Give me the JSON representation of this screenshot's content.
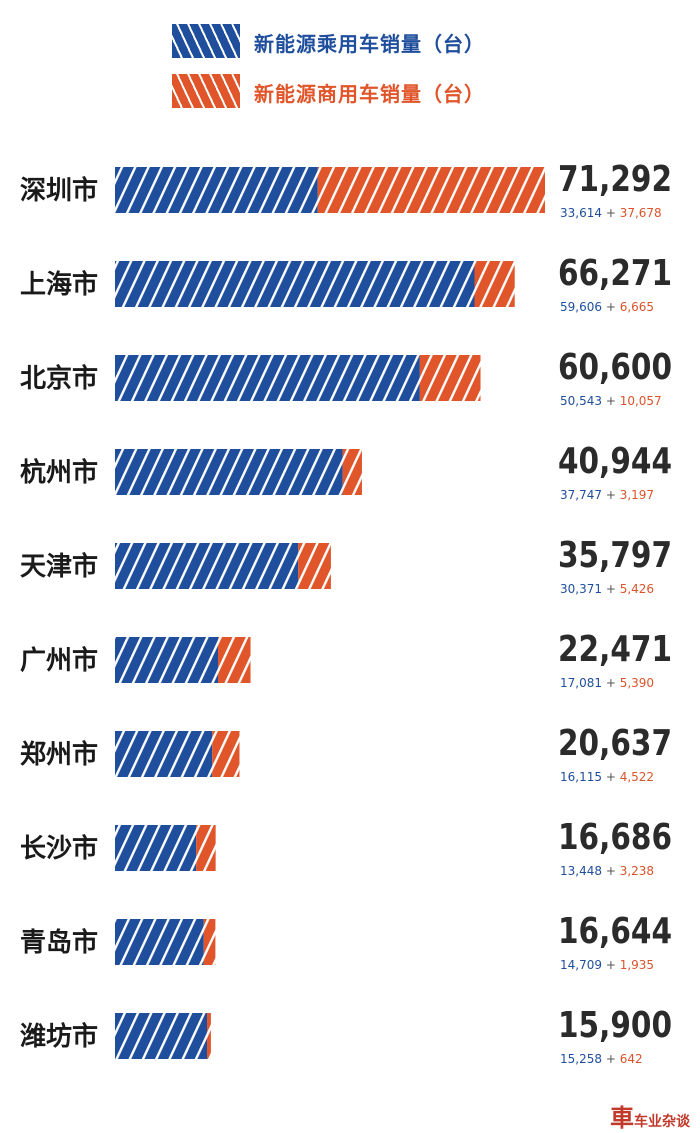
{
  "legend": {
    "passenger": "新能源乘用车销量（台）",
    "commercial": "新能源商用车销量（台）"
  },
  "colors": {
    "passenger": "#1f4e9c",
    "commercial": "#e0552a",
    "total_text": "#2b2b2b",
    "passenger_text": "#1f4e9c",
    "commercial_text": "#d9542b",
    "plus_text": "#555555"
  },
  "chart_data": {
    "type": "bar",
    "orientation": "horizontal",
    "stacked": true,
    "categories": [
      "深圳市",
      "上海市",
      "北京市",
      "杭州市",
      "天津市",
      "广州市",
      "郑州市",
      "长沙市",
      "青岛市",
      "潍坊市"
    ],
    "series": [
      {
        "name": "新能源乘用车销量（台）",
        "values": [
          33614,
          59606,
          50543,
          37747,
          30371,
          17081,
          16115,
          13448,
          14709,
          15258
        ]
      },
      {
        "name": "新能源商用车销量（台）",
        "values": [
          37678,
          6665,
          10057,
          3197,
          5426,
          5390,
          4522,
          3238,
          1935,
          642
        ]
      }
    ],
    "totals": [
      "71,292",
      "66,271",
      "60,600",
      "40,944",
      "35,797",
      "22,471",
      "20,637",
      "16,686",
      "16,644",
      "15,900"
    ],
    "passenger_labels": [
      "33,614",
      "59,606",
      "50,543",
      "37,747",
      "30,371",
      "17,081",
      "16,115",
      "13,448",
      "14,709",
      "15,258"
    ],
    "commercial_labels": [
      "37,678",
      "6,665",
      "10,057",
      "3,197",
      "5,426",
      "5,390",
      "4,522",
      "3,238",
      "1,935",
      "642"
    ],
    "separator": "+",
    "legend_position": "top",
    "grid": false
  },
  "watermark": {
    "logo": "車",
    "text": "车业杂谈"
  }
}
